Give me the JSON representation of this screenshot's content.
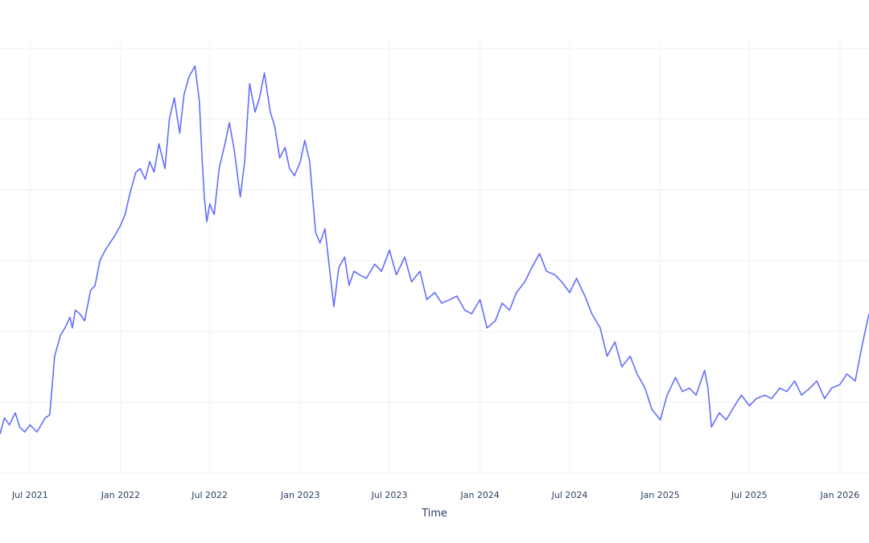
{
  "chart_data": {
    "type": "line",
    "title": "",
    "xlabel": "Time",
    "ylabel": "",
    "grid": true,
    "x_ticks": [
      "Jul 2021",
      "Jan 2022",
      "Jul 2022",
      "Jan 2023",
      "Jul 2023",
      "Jan 2024",
      "Jul 2024",
      "Jan 2025",
      "Jul 2025",
      "Jan 2026"
    ],
    "tick_dates": [
      "2021-07-01",
      "2022-01-01",
      "2022-07-01",
      "2023-01-01",
      "2023-07-01",
      "2024-01-01",
      "2024-07-01",
      "2025-01-01",
      "2025-07-01",
      "2026-01-01"
    ],
    "xlim": [
      "2021-05-01",
      "2026-03-01"
    ],
    "ylim": [
      0.3,
      6.3
    ],
    "series": [
      {
        "color": "#636efa",
        "x": [
          "2021-05-01",
          "2021-05-10",
          "2021-05-20",
          "2021-06-01",
          "2021-06-10",
          "2021-06-20",
          "2021-07-01",
          "2021-07-15",
          "2021-08-01",
          "2021-08-10",
          "2021-08-20",
          "2021-09-01",
          "2021-09-10",
          "2021-09-20",
          "2021-09-25",
          "2021-10-01",
          "2021-10-10",
          "2021-10-20",
          "2021-11-01",
          "2021-11-10",
          "2021-11-20",
          "2021-12-01",
          "2021-12-10",
          "2021-12-20",
          "2022-01-01",
          "2022-01-10",
          "2022-01-20",
          "2022-02-01",
          "2022-02-10",
          "2022-02-20",
          "2022-03-01",
          "2022-03-10",
          "2022-03-20",
          "2022-04-01",
          "2022-04-10",
          "2022-04-20",
          "2022-05-01",
          "2022-05-10",
          "2022-05-20",
          "2022-06-01",
          "2022-06-10",
          "2022-06-15",
          "2022-06-20",
          "2022-06-25",
          "2022-07-01",
          "2022-07-10",
          "2022-07-20",
          "2022-08-01",
          "2022-08-10",
          "2022-08-20",
          "2022-09-01",
          "2022-09-10",
          "2022-09-20",
          "2022-10-01",
          "2022-10-10",
          "2022-10-20",
          "2022-11-01",
          "2022-11-10",
          "2022-11-20",
          "2022-12-01",
          "2022-12-10",
          "2022-12-20",
          "2023-01-01",
          "2023-01-10",
          "2023-01-20",
          "2023-02-01",
          "2023-02-10",
          "2023-02-20",
          "2023-03-01",
          "2023-03-10",
          "2023-03-20",
          "2023-04-01",
          "2023-04-10",
          "2023-04-20",
          "2023-05-01",
          "2023-05-15",
          "2023-06-01",
          "2023-06-15",
          "2023-07-01",
          "2023-07-15",
          "2023-08-01",
          "2023-08-15",
          "2023-09-01",
          "2023-09-15",
          "2023-10-01",
          "2023-10-15",
          "2023-11-01",
          "2023-11-15",
          "2023-12-01",
          "2023-12-15",
          "2024-01-01",
          "2024-01-15",
          "2024-02-01",
          "2024-02-15",
          "2024-03-01",
          "2024-03-15",
          "2024-04-01",
          "2024-04-15",
          "2024-05-01",
          "2024-05-15",
          "2024-06-01",
          "2024-06-15",
          "2024-07-01",
          "2024-07-15",
          "2024-08-01",
          "2024-08-15",
          "2024-09-01",
          "2024-09-15",
          "2024-10-01",
          "2024-10-15",
          "2024-11-01",
          "2024-11-15",
          "2024-12-01",
          "2024-12-15",
          "2025-01-01",
          "2025-01-15",
          "2025-02-01",
          "2025-02-15",
          "2025-03-01",
          "2025-03-15",
          "2025-04-01",
          "2025-04-08",
          "2025-04-15",
          "2025-05-01",
          "2025-05-15",
          "2025-06-01",
          "2025-06-15",
          "2025-07-01",
          "2025-07-15",
          "2025-08-01",
          "2025-08-15",
          "2025-09-01",
          "2025-09-15",
          "2025-10-01",
          "2025-10-15",
          "2025-11-01",
          "2025-11-15",
          "2025-12-01",
          "2025-12-15",
          "2026-01-01",
          "2026-01-15",
          "2026-02-01",
          "2026-02-15",
          "2026-03-01"
        ],
        "y": [
          0.85,
          1.08,
          0.98,
          1.15,
          0.95,
          0.88,
          0.98,
          0.88,
          1.08,
          1.12,
          1.95,
          2.25,
          2.35,
          2.5,
          2.35,
          2.6,
          2.55,
          2.45,
          2.88,
          2.95,
          3.3,
          3.45,
          3.55,
          3.65,
          3.8,
          3.95,
          4.25,
          4.55,
          4.6,
          4.45,
          4.7,
          4.55,
          4.95,
          4.6,
          5.3,
          5.6,
          5.1,
          5.65,
          5.9,
          6.05,
          5.55,
          4.8,
          4.2,
          3.85,
          4.1,
          3.95,
          4.6,
          4.95,
          5.25,
          4.85,
          4.2,
          4.7,
          5.8,
          5.4,
          5.6,
          5.95,
          5.4,
          5.2,
          4.75,
          4.9,
          4.6,
          4.5,
          4.7,
          5.0,
          4.7,
          3.7,
          3.55,
          3.75,
          3.2,
          2.65,
          3.2,
          3.35,
          2.95,
          3.15,
          3.1,
          3.05,
          3.25,
          3.15,
          3.45,
          3.1,
          3.35,
          3.0,
          3.15,
          2.75,
          2.85,
          2.7,
          2.75,
          2.8,
          2.6,
          2.55,
          2.75,
          2.35,
          2.45,
          2.7,
          2.6,
          2.85,
          3.0,
          3.2,
          3.4,
          3.15,
          3.1,
          3.0,
          2.85,
          3.05,
          2.8,
          2.55,
          2.35,
          1.95,
          2.15,
          1.8,
          1.95,
          1.7,
          1.5,
          1.2,
          1.05,
          1.4,
          1.65,
          1.45,
          1.5,
          1.4,
          1.75,
          1.5,
          0.95,
          1.15,
          1.05,
          1.25,
          1.4,
          1.25,
          1.35,
          1.4,
          1.35,
          1.5,
          1.45,
          1.6,
          1.4,
          1.5,
          1.6,
          1.35,
          1.5,
          1.55,
          1.7,
          1.6,
          2.1,
          2.55
        ]
      }
    ]
  }
}
